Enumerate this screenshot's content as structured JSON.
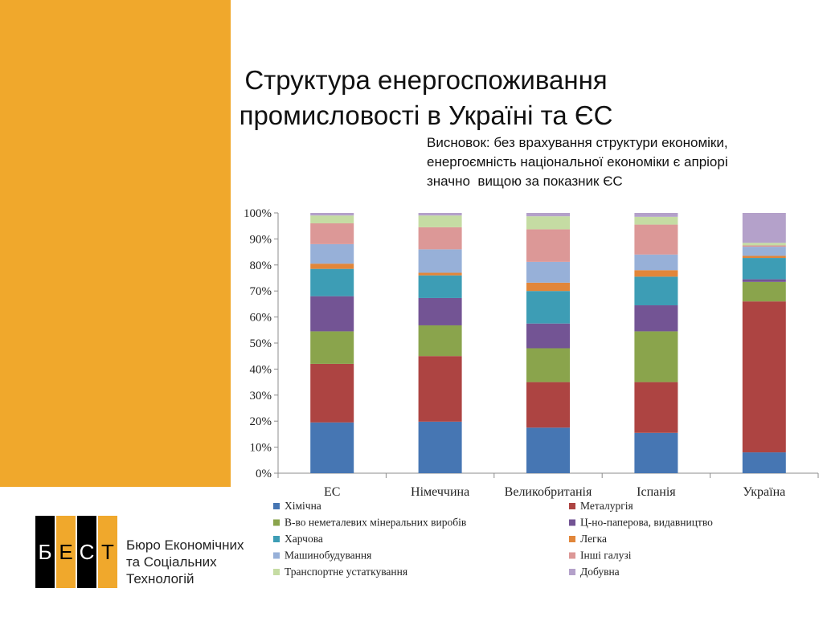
{
  "colors": {
    "panel": "#f0a82c",
    "accent": "#f0a82c",
    "axis": "#8c8c8c",
    "grid": "#d9d9d9"
  },
  "slide": {
    "title_lines": [
      "Структура енергоспоживання",
      "промисловості в Україні та ЄС"
    ],
    "conclusion_lines": [
      "Висновок: без врахування структури економіки,",
      "енергоємність національної економіки є апріорі",
      "значно  вищою за показник ЄС"
    ]
  },
  "logo": {
    "letters": [
      "Б",
      "Е",
      "С",
      "Т"
    ],
    "text_lines": [
      "Бюро Економічних",
      "та Соціальних",
      "Технологій"
    ]
  },
  "chart_data": {
    "type": "bar",
    "stacked": true,
    "percent": true,
    "categories": [
      "ЕС",
      "Німеччина",
      "Великобританія",
      "Іспанія",
      "Україна"
    ],
    "ylim": [
      0,
      100
    ],
    "yticks": [
      "0%",
      "10%",
      "20%",
      "30%",
      "40%",
      "50%",
      "60%",
      "70%",
      "80%",
      "90%",
      "100%"
    ],
    "grid": false,
    "legend": "bottom",
    "series": [
      {
        "name": "Хімічна",
        "color": "#4676b3",
        "values": [
          19.5,
          19.8,
          17.5,
          15.5,
          8.0
        ]
      },
      {
        "name": "Металургія",
        "color": "#ad4442",
        "values": [
          22.5,
          25.2,
          17.5,
          19.5,
          58.0
        ]
      },
      {
        "name": "В-во неметалевих мінеральних виробів",
        "color": "#8aa44c",
        "values": [
          12.5,
          11.8,
          13.0,
          19.5,
          7.5
        ]
      },
      {
        "name": "Ц-но-паперова, видавництво",
        "color": "#735494",
        "values": [
          13.5,
          10.5,
          9.5,
          10.0,
          1.0
        ]
      },
      {
        "name": "Харчова",
        "color": "#3d9db5",
        "values": [
          10.5,
          8.7,
          12.5,
          11.0,
          8.2
        ]
      },
      {
        "name": "Легка",
        "color": "#e1863a",
        "values": [
          2.0,
          1.0,
          3.2,
          2.5,
          0.8
        ]
      },
      {
        "name": "Машинобудування",
        "color": "#97b0d8",
        "values": [
          7.5,
          9.0,
          8.0,
          6.0,
          3.5
        ]
      },
      {
        "name": "Інші галузі",
        "color": "#dc9897",
        "values": [
          8.0,
          8.5,
          12.5,
          11.5,
          0.5
        ]
      },
      {
        "name": "Транспортне устаткування",
        "color": "#c5dca3",
        "values": [
          3.0,
          4.5,
          5.0,
          3.0,
          1.0
        ]
      },
      {
        "name": "Добувна",
        "color": "#b4a1ca",
        "values": [
          1.0,
          1.0,
          1.3,
          1.5,
          11.5
        ]
      }
    ]
  }
}
